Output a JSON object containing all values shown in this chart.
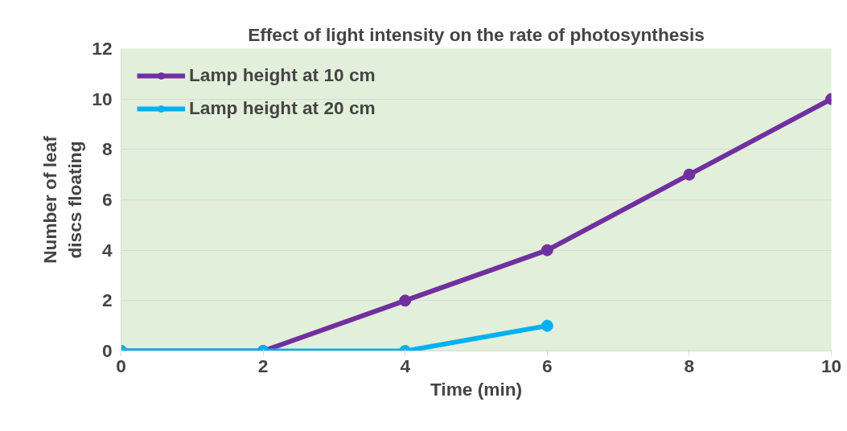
{
  "chart_data": {
    "type": "line",
    "title": "Effect of light intensity on the rate of photosynthesis",
    "xlabel": "Time (min)",
    "ylabel": "Number of leaf\ndiscs floating",
    "series": [
      {
        "name": "Lamp height at 10 cm",
        "color": "#7030a0",
        "x": [
          0,
          2,
          4,
          6,
          8,
          10
        ],
        "values": [
          0,
          0,
          2,
          4,
          7,
          10
        ]
      },
      {
        "name": "Lamp height at 20 cm",
        "color": "#00b0f0",
        "x": [
          0,
          2,
          4,
          6
        ],
        "values": [
          0,
          0,
          0,
          1
        ]
      }
    ],
    "xlim": [
      0,
      10
    ],
    "xticks": [
      0,
      2,
      4,
      6,
      8,
      10
    ],
    "ylim": [
      0,
      12
    ],
    "yticks": [
      0,
      2,
      4,
      6,
      8,
      10,
      12
    ],
    "grid": "y",
    "legend": "top left",
    "marker": "circle",
    "line_style": "solid"
  }
}
